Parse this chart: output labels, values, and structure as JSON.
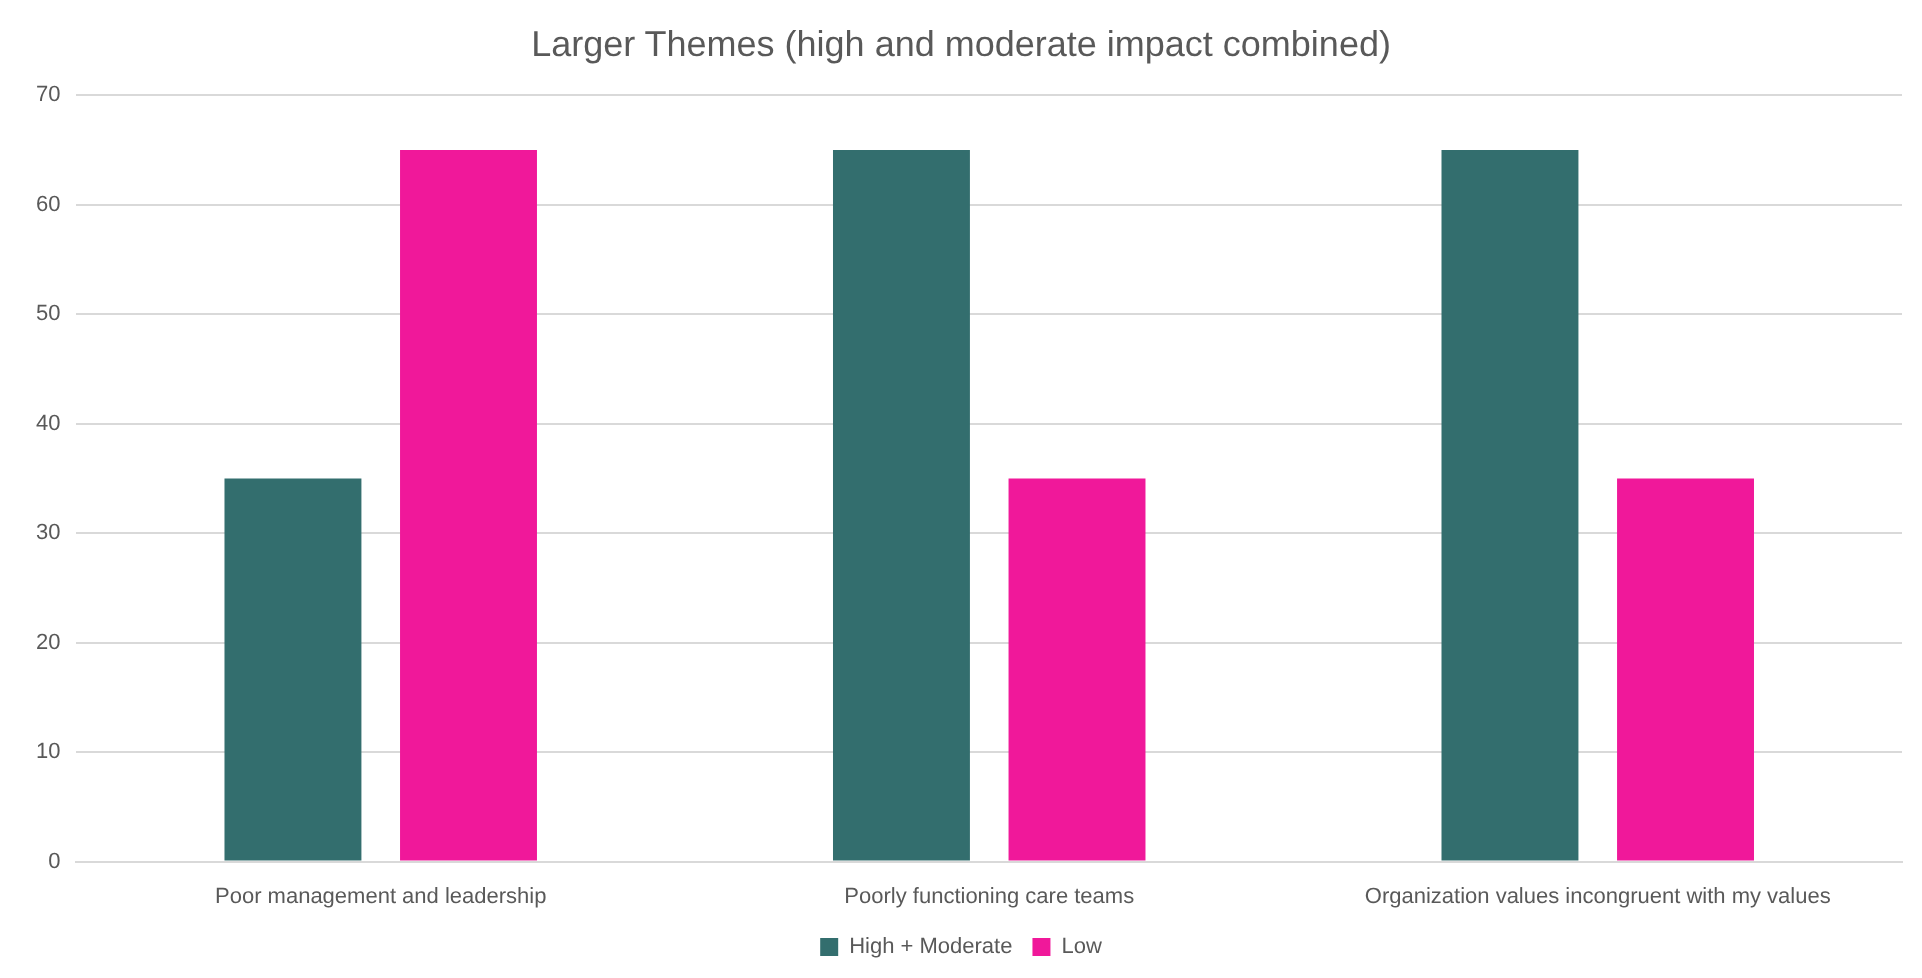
{
  "chart_data": {
    "type": "bar",
    "title": "Larger Themes (high and moderate impact combined)",
    "categories": [
      "Poor management and leadership",
      "Poorly functioning care teams",
      "Organization values incongruent with my values"
    ],
    "series": [
      {
        "name": "High + Moderate",
        "color": "#336e6e",
        "values": [
          35,
          65,
          65
        ]
      },
      {
        "name": "Low",
        "color": "#f0189a",
        "values": [
          65,
          35,
          35
        ]
      }
    ],
    "ylim": [
      0,
      70
    ],
    "yticks": [
      0,
      10,
      20,
      30,
      40,
      50,
      60,
      70
    ],
    "grid": "y",
    "legend": "bottom"
  }
}
